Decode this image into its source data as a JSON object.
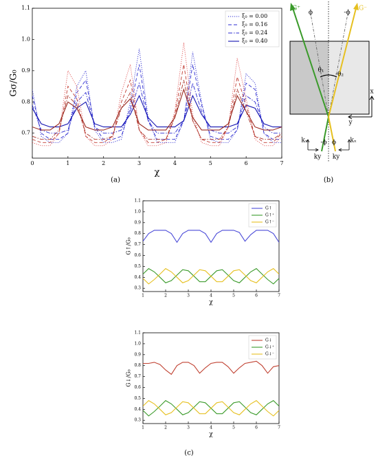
{
  "chart_data": [
    {
      "type": "line",
      "xlabel": "χ",
      "ylabel": "Gσ/G₀",
      "x": [
        0,
        0.25,
        0.5,
        0.75,
        1,
        1.25,
        1.5,
        1.75,
        2,
        2.25,
        2.5,
        2.75,
        3,
        3.25,
        3.5,
        3.75,
        4,
        4.25,
        4.5,
        4.75,
        5,
        5.25,
        5.5,
        5.75,
        6,
        6.25,
        6.5,
        6.75,
        7
      ],
      "xlim": [
        0,
        7
      ],
      "ylim": [
        0.62,
        1.1
      ],
      "xticks": [
        0,
        1,
        2,
        3,
        4,
        5,
        6,
        7
      ],
      "yticks": [
        0.7,
        0.8,
        0.9,
        {
          "value": 1,
          "label": "1.0"
        },
        1.1
      ],
      "legend": "upper right",
      "series": [
        {
          "name": "ξ₀ = 0.00",
          "color": "#2b2bd0",
          "dash": "dotted",
          "values": [
            0.84,
            0.69,
            0.67,
            0.67,
            0.7,
            0.85,
            0.9,
            0.71,
            0.67,
            0.67,
            0.68,
            0.8,
            0.97,
            0.75,
            0.67,
            0.67,
            0.67,
            0.74,
            0.96,
            0.8,
            0.68,
            0.67,
            0.67,
            0.71,
            0.89,
            0.86,
            0.7,
            0.67,
            0.67
          ]
        },
        {
          "name": "ξ₀ = 0.16",
          "color": "#2b2bd0",
          "dash": "dashed",
          "values": [
            0.82,
            0.7,
            0.68,
            0.68,
            0.7,
            0.83,
            0.87,
            0.72,
            0.68,
            0.68,
            0.69,
            0.78,
            0.92,
            0.74,
            0.68,
            0.68,
            0.68,
            0.74,
            0.92,
            0.79,
            0.69,
            0.68,
            0.68,
            0.71,
            0.86,
            0.84,
            0.7,
            0.68,
            0.68
          ]
        },
        {
          "name": "ξ₀ = 0.24",
          "color": "#2b2bd0",
          "dash": "dashdot",
          "values": [
            0.79,
            0.71,
            0.7,
            0.7,
            0.71,
            0.8,
            0.83,
            0.72,
            0.7,
            0.7,
            0.71,
            0.77,
            0.86,
            0.74,
            0.7,
            0.7,
            0.7,
            0.74,
            0.86,
            0.77,
            0.71,
            0.7,
            0.7,
            0.72,
            0.82,
            0.8,
            0.72,
            0.7,
            0.7
          ]
        },
        {
          "name": "ξ₀ = 0.40",
          "color": "#1010b0",
          "dash": "solid",
          "values": [
            0.78,
            0.73,
            0.72,
            0.72,
            0.73,
            0.78,
            0.8,
            0.73,
            0.72,
            0.72,
            0.72,
            0.76,
            0.82,
            0.75,
            0.72,
            0.72,
            0.72,
            0.74,
            0.82,
            0.76,
            0.72,
            0.72,
            0.72,
            0.73,
            0.79,
            0.78,
            0.73,
            0.72,
            0.72
          ]
        },
        {
          "color": "#e05050",
          "dash": "dotted",
          "values": [
            0.67,
            0.66,
            0.66,
            0.7,
            0.9,
            0.85,
            0.69,
            0.66,
            0.66,
            0.68,
            0.83,
            0.92,
            0.71,
            0.66,
            0.66,
            0.67,
            0.77,
            0.99,
            0.76,
            0.67,
            0.66,
            0.66,
            0.72,
            0.94,
            0.81,
            0.68,
            0.66,
            0.66,
            0.69
          ]
        },
        {
          "color": "#c03a30",
          "dash": "dashed",
          "values": [
            0.68,
            0.67,
            0.67,
            0.7,
            0.85,
            0.81,
            0.69,
            0.67,
            0.67,
            0.69,
            0.8,
            0.87,
            0.71,
            0.67,
            0.67,
            0.68,
            0.76,
            0.92,
            0.74,
            0.68,
            0.67,
            0.67,
            0.72,
            0.88,
            0.79,
            0.69,
            0.67,
            0.67,
            0.7
          ]
        },
        {
          "color": "#a83228",
          "dash": "dashdot",
          "values": [
            0.69,
            0.68,
            0.68,
            0.71,
            0.82,
            0.79,
            0.7,
            0.68,
            0.68,
            0.69,
            0.78,
            0.83,
            0.71,
            0.68,
            0.68,
            0.68,
            0.75,
            0.87,
            0.74,
            0.68,
            0.68,
            0.68,
            0.72,
            0.84,
            0.77,
            0.69,
            0.68,
            0.68,
            0.7
          ]
        },
        {
          "color": "#9a2a20",
          "dash": "solid",
          "values": [
            0.72,
            0.71,
            0.71,
            0.73,
            0.8,
            0.78,
            0.72,
            0.71,
            0.71,
            0.72,
            0.78,
            0.81,
            0.73,
            0.71,
            0.71,
            0.71,
            0.75,
            0.84,
            0.75,
            0.71,
            0.71,
            0.71,
            0.73,
            0.82,
            0.77,
            0.72,
            0.71,
            0.71,
            0.72
          ]
        }
      ]
    },
    {
      "type": "line",
      "xlabel": "χ",
      "ylabel": "G↑/G₀",
      "x": [
        1,
        1.25,
        1.5,
        1.75,
        2,
        2.25,
        2.5,
        2.75,
        3,
        3.25,
        3.5,
        3.75,
        4,
        4.25,
        4.5,
        4.75,
        5,
        5.25,
        5.5,
        5.75,
        6,
        6.25,
        6.5,
        6.75,
        7
      ],
      "xlim": [
        1,
        7
      ],
      "ylim": [
        0.27,
        1.1
      ],
      "xticks": [
        1,
        2,
        3,
        4,
        5,
        6,
        7
      ],
      "yticks": [
        0.3,
        0.4,
        0.5,
        0.6,
        0.7,
        0.8,
        0.9,
        {
          "value": 1,
          "label": "1.0"
        },
        1.1
      ],
      "legend": "upper right",
      "series": [
        {
          "name": "G↑",
          "color": "#4a4ad8",
          "dash": "solid",
          "values": [
            0.73,
            0.8,
            0.83,
            0.83,
            0.83,
            0.8,
            0.72,
            0.8,
            0.83,
            0.83,
            0.83,
            0.8,
            0.72,
            0.8,
            0.83,
            0.83,
            0.83,
            0.81,
            0.73,
            0.79,
            0.83,
            0.83,
            0.83,
            0.8,
            0.72
          ]
        },
        {
          "name": "G↑⁺",
          "color": "#3a9a2a",
          "dash": "solid",
          "values": [
            0.43,
            0.48,
            0.45,
            0.4,
            0.35,
            0.37,
            0.42,
            0.47,
            0.46,
            0.41,
            0.36,
            0.36,
            0.41,
            0.46,
            0.47,
            0.42,
            0.37,
            0.35,
            0.4,
            0.45,
            0.48,
            0.43,
            0.38,
            0.34,
            0.39
          ]
        },
        {
          "name": "G↑⁻",
          "color": "#e6c020",
          "dash": "solid",
          "values": [
            0.39,
            0.34,
            0.38,
            0.43,
            0.48,
            0.45,
            0.4,
            0.35,
            0.37,
            0.42,
            0.47,
            0.46,
            0.41,
            0.36,
            0.36,
            0.41,
            0.46,
            0.47,
            0.42,
            0.37,
            0.35,
            0.4,
            0.45,
            0.48,
            0.43
          ]
        }
      ]
    },
    {
      "type": "line",
      "xlabel": "χ",
      "ylabel": "G↓/G₀",
      "x": [
        1,
        1.25,
        1.5,
        1.75,
        2,
        2.25,
        2.5,
        2.75,
        3,
        3.25,
        3.5,
        3.75,
        4,
        4.25,
        4.5,
        4.75,
        5,
        5.25,
        5.5,
        5.75,
        6,
        6.25,
        6.5,
        6.75,
        7
      ],
      "xlim": [
        1,
        7
      ],
      "ylim": [
        0.27,
        1.1
      ],
      "xticks": [
        1,
        2,
        3,
        4,
        5,
        6,
        7
      ],
      "yticks": [
        0.3,
        0.4,
        0.5,
        0.6,
        0.7,
        0.8,
        0.9,
        {
          "value": 1,
          "label": "1.0"
        },
        1.1
      ],
      "legend": "upper right",
      "series": [
        {
          "name": "G↓",
          "color": "#c04030",
          "dash": "solid",
          "values": [
            0.82,
            0.82,
            0.83,
            0.81,
            0.76,
            0.72,
            0.8,
            0.83,
            0.83,
            0.8,
            0.73,
            0.78,
            0.82,
            0.83,
            0.83,
            0.79,
            0.73,
            0.78,
            0.82,
            0.83,
            0.84,
            0.8,
            0.73,
            0.79,
            0.8
          ]
        },
        {
          "name": "G↓⁺",
          "color": "#3a9a2a",
          "dash": "solid",
          "values": [
            0.39,
            0.34,
            0.38,
            0.43,
            0.48,
            0.45,
            0.4,
            0.35,
            0.37,
            0.42,
            0.47,
            0.46,
            0.41,
            0.36,
            0.36,
            0.41,
            0.46,
            0.47,
            0.42,
            0.37,
            0.35,
            0.4,
            0.45,
            0.48,
            0.43
          ]
        },
        {
          "name": "G↓⁻",
          "color": "#e6c020",
          "dash": "solid",
          "values": [
            0.43,
            0.48,
            0.45,
            0.4,
            0.35,
            0.37,
            0.42,
            0.47,
            0.46,
            0.41,
            0.36,
            0.36,
            0.41,
            0.46,
            0.47,
            0.42,
            0.37,
            0.35,
            0.4,
            0.45,
            0.48,
            0.43,
            0.38,
            0.34,
            0.39
          ]
        }
      ]
    }
  ],
  "diagram": {
    "labels": [
      "G⁺",
      "ϕ",
      "-ϕ",
      "G⁻",
      "θ₁",
      "-θ₂",
      "x",
      "y",
      "kₓ",
      "ky",
      "-ϕ",
      "ϕ",
      "ky",
      "kₓ"
    ]
  },
  "captions": [
    "(a)",
    "(b)",
    "(c)"
  ]
}
